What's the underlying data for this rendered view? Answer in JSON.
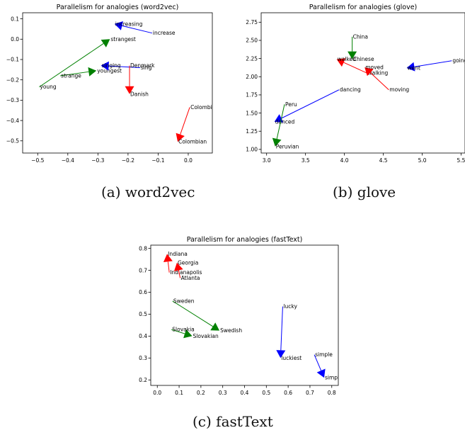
{
  "captions": [
    "(a) word2vec",
    "(b) glove",
    "(c) fastText"
  ],
  "colors": {
    "red": "#ff0000",
    "green": "#008000",
    "blue": "#0000ff"
  },
  "chart_data": [
    {
      "type": "scatter",
      "title": "Parallelism for analogies (word2vec)",
      "xlim": [
        -0.55,
        0.08
      ],
      "ylim": [
        -0.56,
        0.13
      ],
      "xticks": [
        -0.5,
        -0.4,
        -0.3,
        -0.2,
        -0.1,
        0.0
      ],
      "xtick_labels": [
        "−0.5",
        "−0.4",
        "−0.3",
        "−0.2",
        "−0.1",
        "0.0"
      ],
      "yticks": [
        0.1,
        0.0,
        -0.1,
        -0.2,
        -0.3,
        -0.4,
        -0.5
      ],
      "ytick_labels": [
        "0.1",
        "0.0",
        "−0.1",
        "−0.2",
        "−0.3",
        "−0.4",
        "−0.5"
      ],
      "arrows": [
        {
          "color": "blue",
          "from": {
            "label": "increase",
            "x": -0.12,
            "y": 0.03
          },
          "to": {
            "label": "increasing",
            "x": -0.245,
            "y": 0.075
          }
        },
        {
          "color": "green",
          "from": {
            "label": "young",
            "x": -0.495,
            "y": -0.235
          },
          "to": {
            "label": "strangest",
            "x": -0.26,
            "y": 0.0
          }
        },
        {
          "color": "green",
          "from": {
            "label": "strange",
            "x": -0.425,
            "y": -0.18
          },
          "to": {
            "label": "youngest",
            "x": -0.305,
            "y": -0.155
          }
        },
        {
          "color": "blue",
          "from": {
            "label": "sing",
            "x": -0.16,
            "y": -0.14
          },
          "to": {
            "label": "singing",
            "x": -0.29,
            "y": -0.13
          }
        },
        {
          "color": "red",
          "from": {
            "label": "Denmark",
            "x": -0.195,
            "y": -0.13
          },
          "to": {
            "label": "Danish",
            "x": -0.195,
            "y": -0.27
          }
        },
        {
          "color": "red",
          "from": {
            "label": "Colombia",
            "x": 0.005,
            "y": -0.335
          },
          "to": {
            "label": "Colombian",
            "x": -0.035,
            "y": -0.505
          }
        }
      ]
    },
    {
      "type": "scatter",
      "title": "Parallelism for analogies (glove)",
      "xlim": [
        2.93,
        5.55
      ],
      "ylim": [
        0.95,
        2.88
      ],
      "xticks": [
        3.0,
        3.5,
        4.0,
        4.5,
        5.0,
        5.5
      ],
      "xtick_labels": [
        "3.0",
        "3.5",
        "4.0",
        "4.5",
        "5.0",
        "5.5"
      ],
      "yticks": [
        1.0,
        1.25,
        1.5,
        1.75,
        2.0,
        2.25,
        2.5,
        2.75
      ],
      "ytick_labels": [
        "1.00",
        "1.25",
        "1.50",
        "1.75",
        "2.00",
        "2.25",
        "2.50",
        "2.75"
      ],
      "arrows": [
        {
          "color": "green",
          "from": {
            "label": "China",
            "x": 4.1,
            "y": 2.55
          },
          "to": {
            "label": "Chinese",
            "x": 4.1,
            "y": 2.24
          }
        },
        {
          "color": "blue",
          "from": {
            "label": "going",
            "x": 5.38,
            "y": 2.22
          },
          "to": {
            "label": "went",
            "x": 4.8,
            "y": 2.12
          }
        },
        {
          "color": "red",
          "from": {
            "label": "walking",
            "x": 4.29,
            "y": 2.05
          },
          "to": {
            "label": "walked",
            "x": 3.9,
            "y": 2.24
          }
        },
        {
          "color": "red",
          "from": {
            "label": "moving",
            "x": 4.57,
            "y": 1.82
          },
          "to": {
            "label": "moved",
            "x": 4.26,
            "y": 2.13
          }
        },
        {
          "color": "blue",
          "from": {
            "label": "dancing",
            "x": 3.93,
            "y": 1.82
          },
          "to": {
            "label": "danced",
            "x": 3.1,
            "y": 1.38
          }
        },
        {
          "color": "green",
          "from": {
            "label": "Peru",
            "x": 3.23,
            "y": 1.62
          },
          "to": {
            "label": "Peruvian",
            "x": 3.11,
            "y": 1.04
          }
        }
      ]
    },
    {
      "type": "scatter",
      "title": "Parallelism for analogies (fastText)",
      "xlim": [
        -0.03,
        0.83
      ],
      "ylim": [
        0.175,
        0.815
      ],
      "xticks": [
        0.0,
        0.1,
        0.2,
        0.3,
        0.4,
        0.5,
        0.6,
        0.7,
        0.8
      ],
      "xtick_labels": [
        "0.0",
        "0.1",
        "0.2",
        "0.3",
        "0.4",
        "0.5",
        "0.6",
        "0.7",
        "0.8"
      ],
      "yticks": [
        0.2,
        0.3,
        0.4,
        0.5,
        0.6,
        0.7,
        0.8
      ],
      "ytick_labels": [
        "0.2",
        "0.3",
        "0.4",
        "0.5",
        "0.6",
        "0.7",
        "0.8"
      ],
      "arrows": [
        {
          "color": "red",
          "from": {
            "label": "Indianapolis",
            "x": 0.055,
            "y": 0.69
          },
          "to": {
            "label": "Indiana",
            "x": 0.045,
            "y": 0.775
          }
        },
        {
          "color": "red",
          "from": {
            "label": "Atlanta",
            "x": 0.105,
            "y": 0.665
          },
          "to": {
            "label": "Georgia",
            "x": 0.09,
            "y": 0.735
          }
        },
        {
          "color": "green",
          "from": {
            "label": "Sweden",
            "x": 0.07,
            "y": 0.56
          },
          "to": {
            "label": "Swedish",
            "x": 0.285,
            "y": 0.425
          }
        },
        {
          "color": "green",
          "from": {
            "label": "Slovakia",
            "x": 0.065,
            "y": 0.43
          },
          "to": {
            "label": "Slovakian",
            "x": 0.16,
            "y": 0.4
          }
        },
        {
          "color": "blue",
          "from": {
            "label": "lucky",
            "x": 0.575,
            "y": 0.535
          },
          "to": {
            "label": "luckiest",
            "x": 0.565,
            "y": 0.3
          }
        },
        {
          "color": "blue",
          "from": {
            "label": "simple",
            "x": 0.72,
            "y": 0.315
          },
          "to": {
            "label": "simplest",
            "x": 0.765,
            "y": 0.21
          }
        }
      ]
    }
  ]
}
